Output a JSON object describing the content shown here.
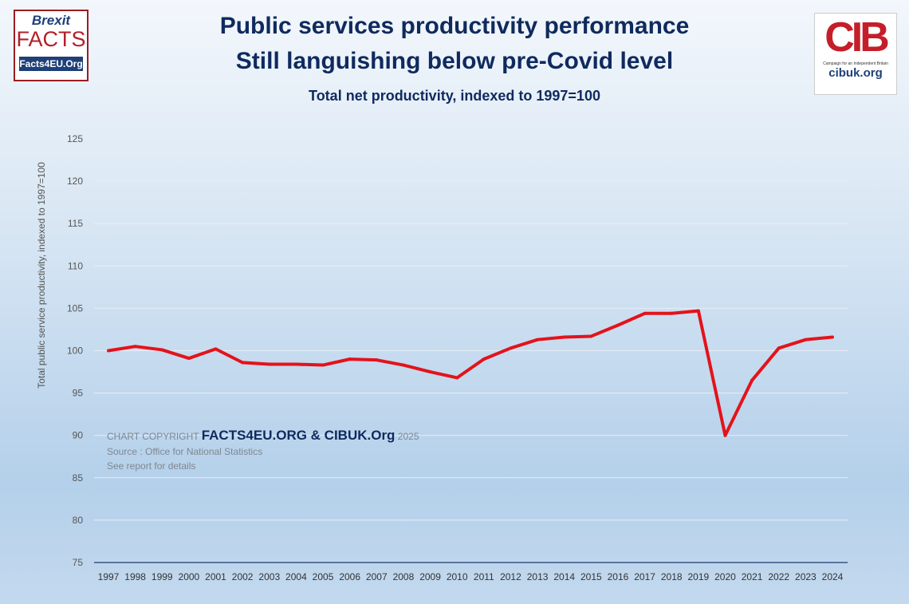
{
  "title": "Public services productivity performance",
  "subtitle": "Still languishing below pre-Covid level",
  "subtitle2": "Total net productivity, indexed to 1997=100",
  "logos": {
    "left": {
      "line1": "Brexit",
      "line2": "FACTS",
      "line3": "Facts4EU.Org"
    },
    "right": {
      "mark": "CIB",
      "tagline": "Campaign for an Independent Britain",
      "url": "cibuk.org"
    }
  },
  "notes": {
    "copyright_prefix": "CHART COPYRIGHT",
    "copyright_owner": "FACTS4EU.ORG & CIBUK.Org",
    "copyright_year": "2025",
    "source": "Source : Office for National Statistics",
    "details": "See report for details"
  },
  "chart_data": {
    "type": "line",
    "title": "Public services productivity performance",
    "ylabel": "Total public service productivity, indexed to 1997=100",
    "xlabel": "",
    "ylim": [
      75,
      125
    ],
    "yticks": [
      75,
      80,
      85,
      90,
      95,
      100,
      105,
      110,
      115,
      120,
      125
    ],
    "grid": true,
    "line_color": "#e3131b",
    "categories": [
      "1997",
      "1998",
      "1999",
      "2000",
      "2001",
      "2002",
      "2003",
      "2004",
      "2005",
      "2006",
      "2007",
      "2008",
      "2009",
      "2010",
      "2011",
      "2012",
      "2013",
      "2014",
      "2015",
      "2016",
      "2017",
      "2018",
      "2019",
      "2020",
      "2021",
      "2022",
      "2023",
      "2024"
    ],
    "values": [
      100.0,
      100.5,
      100.1,
      99.1,
      100.2,
      98.6,
      98.4,
      98.4,
      98.3,
      99.0,
      98.9,
      98.3,
      97.5,
      96.8,
      99.0,
      100.3,
      101.3,
      101.6,
      101.7,
      103.0,
      104.4,
      104.4,
      104.7,
      90.0,
      96.5,
      100.3,
      101.3,
      101.6
    ]
  }
}
